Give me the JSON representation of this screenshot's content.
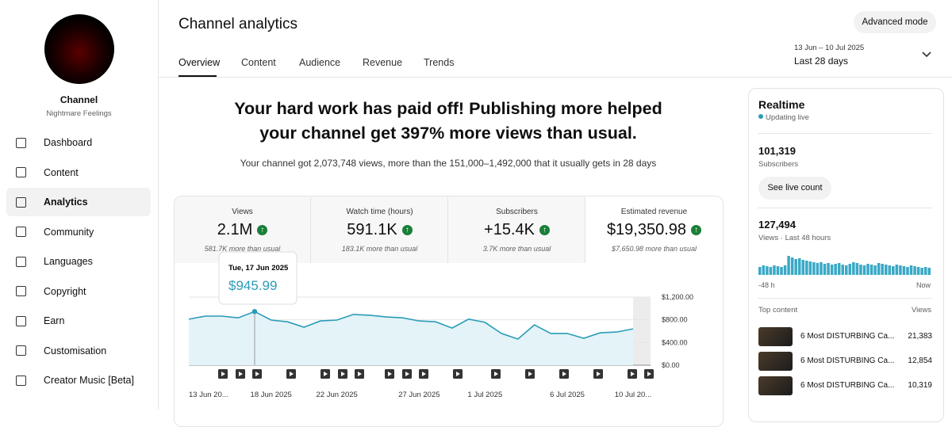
{
  "sidebar": {
    "channel_name": "Channel",
    "channel_handle": "Nightmare Feelings",
    "nav": [
      "Dashboard",
      "Content",
      "Analytics",
      "Community",
      "Languages",
      "Copyright",
      "Earn",
      "Customisation",
      "Creator Music [Beta]"
    ]
  },
  "header": {
    "title": "Channel analytics",
    "tabs": [
      "Overview",
      "Content",
      "Audience",
      "Revenue",
      "Trends"
    ],
    "advanced_mode": "Advanced mode",
    "date_range": "13 Jun – 10 Jul 2025",
    "period": "Last 28 days"
  },
  "headline": {
    "title": "Your hard work has paid off! Publishing more helped your channel get 397% more views than usual.",
    "summary": "Your channel got 2,073,748 views, more than the 151,000–1,492,000 that it usually gets in 28 days"
  },
  "metrics": [
    {
      "label": "Views",
      "value": "2.1M",
      "delta": "581.7K more than usual"
    },
    {
      "label": "Watch time (hours)",
      "value": "591.1K",
      "delta": "183.1K more than usual"
    },
    {
      "label": "Subscribers",
      "value": "+15.4K",
      "delta": "3.7K more than usual"
    },
    {
      "label": "Estimated revenue",
      "value": "$19,350.98",
      "delta": "$7,650.98 more than usual"
    }
  ],
  "chart_data": {
    "type": "line",
    "categories": [
      "13 Jun 20...",
      null,
      null,
      null,
      null,
      "18 Jun 2025",
      null,
      null,
      null,
      "22 Jun 2025",
      null,
      null,
      null,
      null,
      "27 Jun 2025",
      null,
      null,
      null,
      "1 Jul 2025",
      null,
      null,
      null,
      null,
      "6 Jul 2025",
      null,
      null,
      null,
      "10 Jul 20..."
    ],
    "values": [
      810,
      865,
      865,
      835,
      945.99,
      795,
      765,
      670,
      780,
      795,
      895,
      880,
      850,
      835,
      780,
      765,
      655,
      810,
      755,
      560,
      460,
      710,
      560,
      560,
      475,
      570,
      585,
      640
    ],
    "color": "#2b9cb8",
    "ylim": [
      0,
      1200
    ],
    "yticks": [
      {
        "value": 0,
        "label": "$0.00"
      },
      {
        "value": 400,
        "label": "$400.00"
      },
      {
        "value": 800,
        "label": "$800.00"
      },
      {
        "value": 1200,
        "label": "$1,200.00"
      }
    ],
    "grid": true,
    "tooltip": {
      "date": "Tue, 17 Jun 2025",
      "value": "$945.99"
    }
  },
  "realtime": {
    "title": "Realtime",
    "status": "Updating live",
    "subscribers": "101,319",
    "subscribers_label": "Subscribers",
    "live_count_button": "See live count",
    "views": "127,494",
    "views_label": "Views · Last 48 hours",
    "bars": [
      10,
      12,
      11,
      10,
      12,
      11,
      10,
      12,
      24,
      22,
      20,
      21,
      19,
      18,
      17,
      16,
      15,
      16,
      14,
      15,
      13,
      14,
      15,
      13,
      12,
      14,
      16,
      15,
      13,
      12,
      14,
      13,
      12,
      15,
      14,
      13,
      12,
      11,
      13,
      12,
      11,
      10,
      12,
      11,
      10,
      9,
      10,
      9
    ],
    "start_label": "-48 h",
    "end_label": "Now",
    "top_content_label": "Top content",
    "views_column": "Views",
    "top_content": [
      {
        "title": "6 Most DISTURBING Ca...",
        "views": "21,383"
      },
      {
        "title": "6 Most DISTURBING Ca...",
        "views": "12,854"
      },
      {
        "title": "6 Most DISTURBING Ca...",
        "views": "10,319"
      }
    ]
  }
}
